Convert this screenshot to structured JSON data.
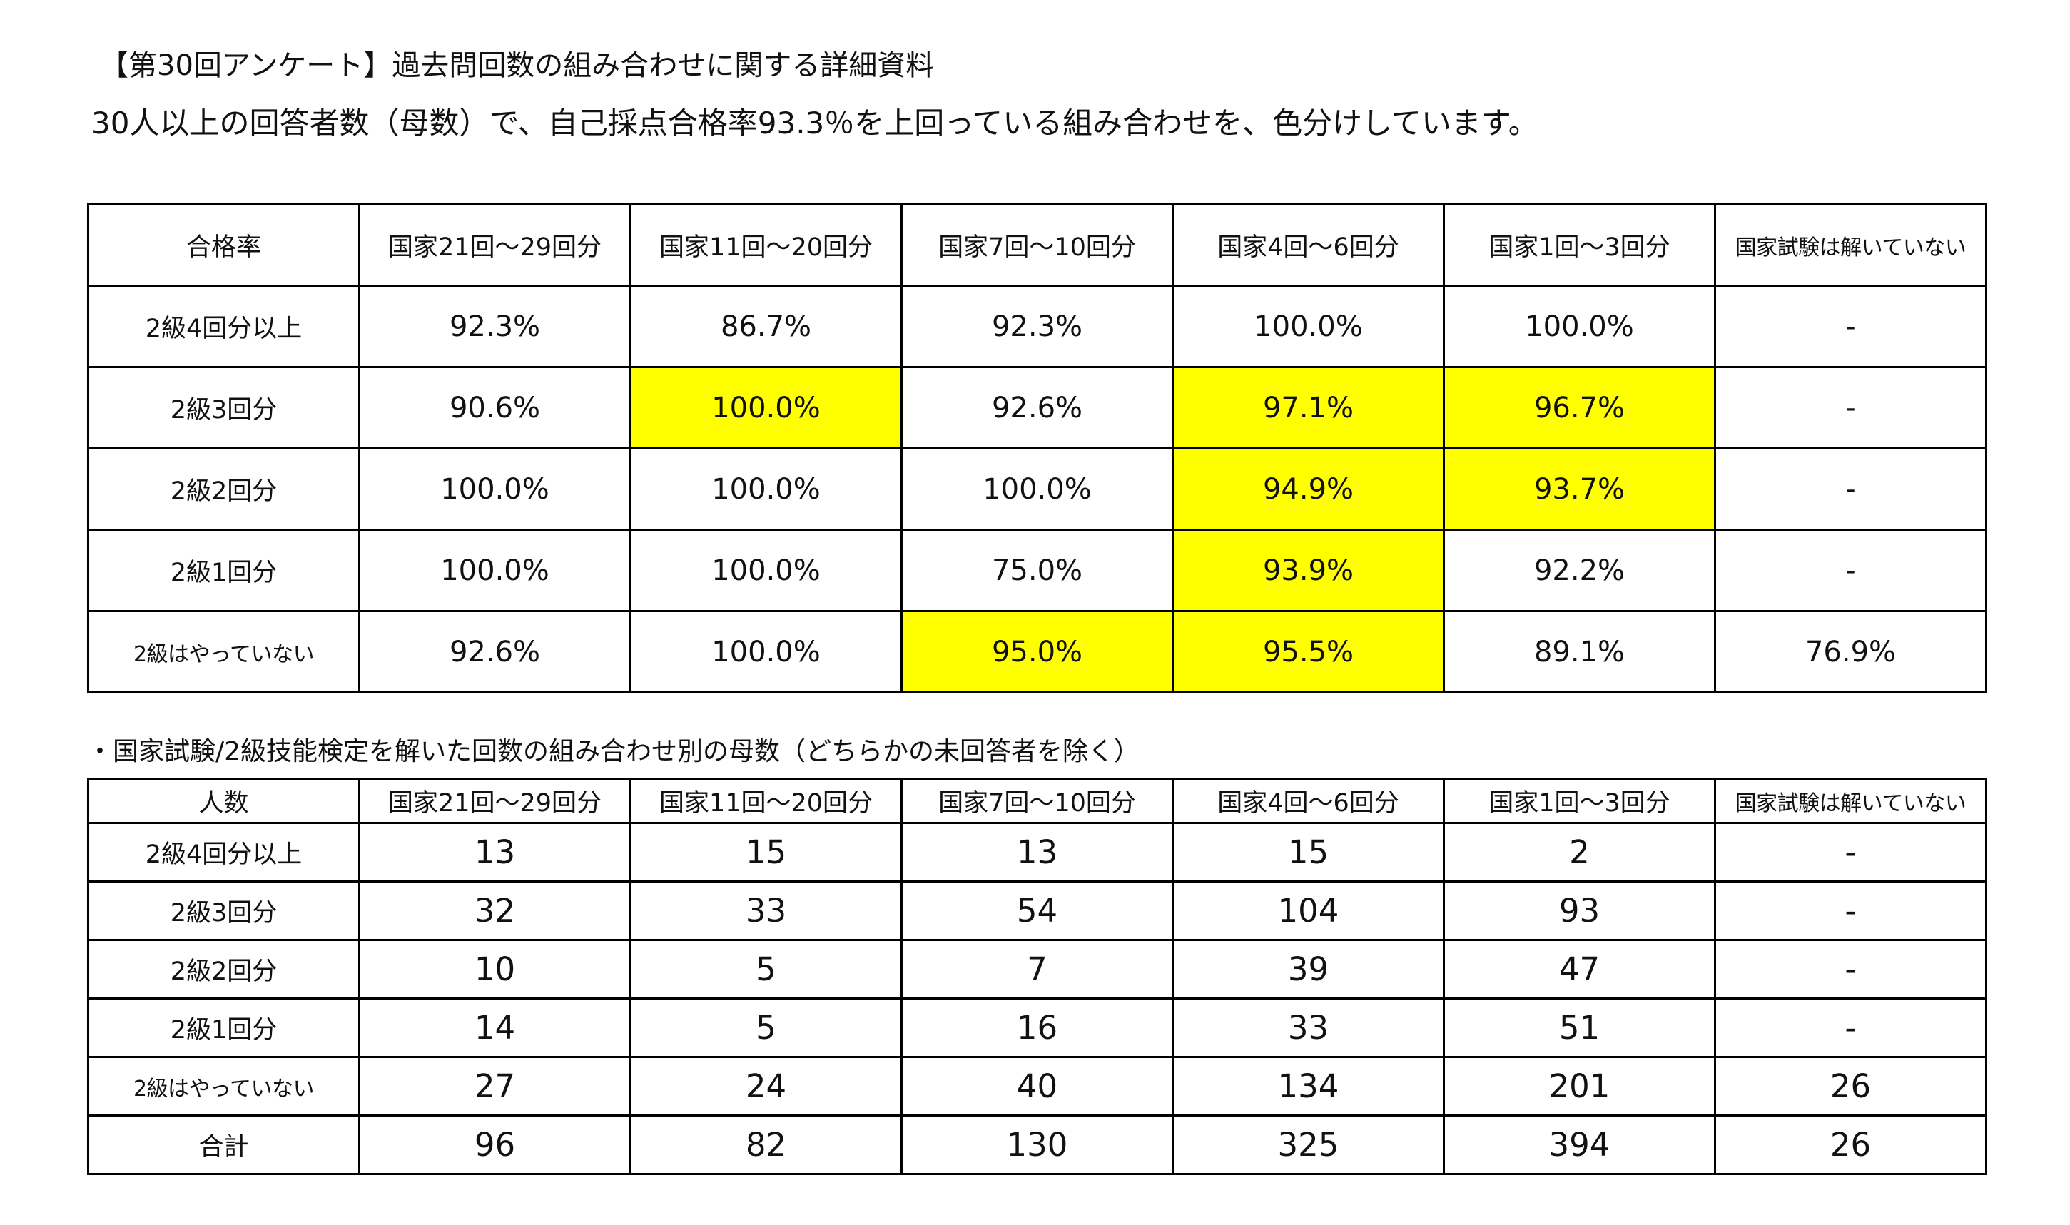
{
  "title": "【第30回アンケート】過去問回数の組み合わせに関する詳細資料",
  "subtitle": "30人以上の回答者数（母数）で、自己採点合格率93.3％を上回っている組み合わせを、色分けしています。",
  "highlight_color": "#ffff00",
  "rate_table": {
    "corner": "合格率",
    "columns": [
      "国家21回～29回分",
      "国家11回～20回分",
      "国家7回～10回分",
      "国家4回～6回分",
      "国家1回～3回分",
      "国家試験は解いていない"
    ],
    "rows": [
      {
        "label": "2級4回分以上",
        "cells": [
          "92.3%",
          "86.7%",
          "92.3%",
          "100.0%",
          "100.0%",
          "-"
        ]
      },
      {
        "label": "2級3回分",
        "cells": [
          "90.6%",
          "100.0%",
          "92.6%",
          "97.1%",
          "96.7%",
          "-"
        ]
      },
      {
        "label": "2級2回分",
        "cells": [
          "100.0%",
          "100.0%",
          "100.0%",
          "94.9%",
          "93.7%",
          "-"
        ]
      },
      {
        "label": "2級1回分",
        "cells": [
          "100.0%",
          "100.0%",
          "75.0%",
          "93.9%",
          "92.2%",
          "-"
        ]
      },
      {
        "label": "2級はやっていない",
        "cells": [
          "92.6%",
          "100.0%",
          "95.0%",
          "95.5%",
          "89.1%",
          "76.9%"
        ]
      }
    ]
  },
  "count_note": "・国家試験/2級技能検定を解いた回数の組み合わせ別の母数（どちらかの未回答者を除く）",
  "count_table": {
    "corner": "人数",
    "columns": [
      "国家21回～29回分",
      "国家11回～20回分",
      "国家7回～10回分",
      "国家4回～6回分",
      "国家1回～3回分",
      "国家試験は解いていない"
    ],
    "rows": [
      {
        "label": "2級4回分以上",
        "cells": [
          "13",
          "15",
          "13",
          "15",
          "2",
          "-"
        ]
      },
      {
        "label": "2級3回分",
        "cells": [
          "32",
          "33",
          "54",
          "104",
          "93",
          "-"
        ]
      },
      {
        "label": "2級2回分",
        "cells": [
          "10",
          "5",
          "7",
          "39",
          "47",
          "-"
        ]
      },
      {
        "label": "2級1回分",
        "cells": [
          "14",
          "5",
          "16",
          "33",
          "51",
          "-"
        ]
      },
      {
        "label": "2級はやっていない",
        "cells": [
          "27",
          "24",
          "40",
          "134",
          "201",
          "26"
        ]
      },
      {
        "label": "合計",
        "cells": [
          "96",
          "82",
          "130",
          "325",
          "394",
          "26"
        ]
      }
    ]
  }
}
